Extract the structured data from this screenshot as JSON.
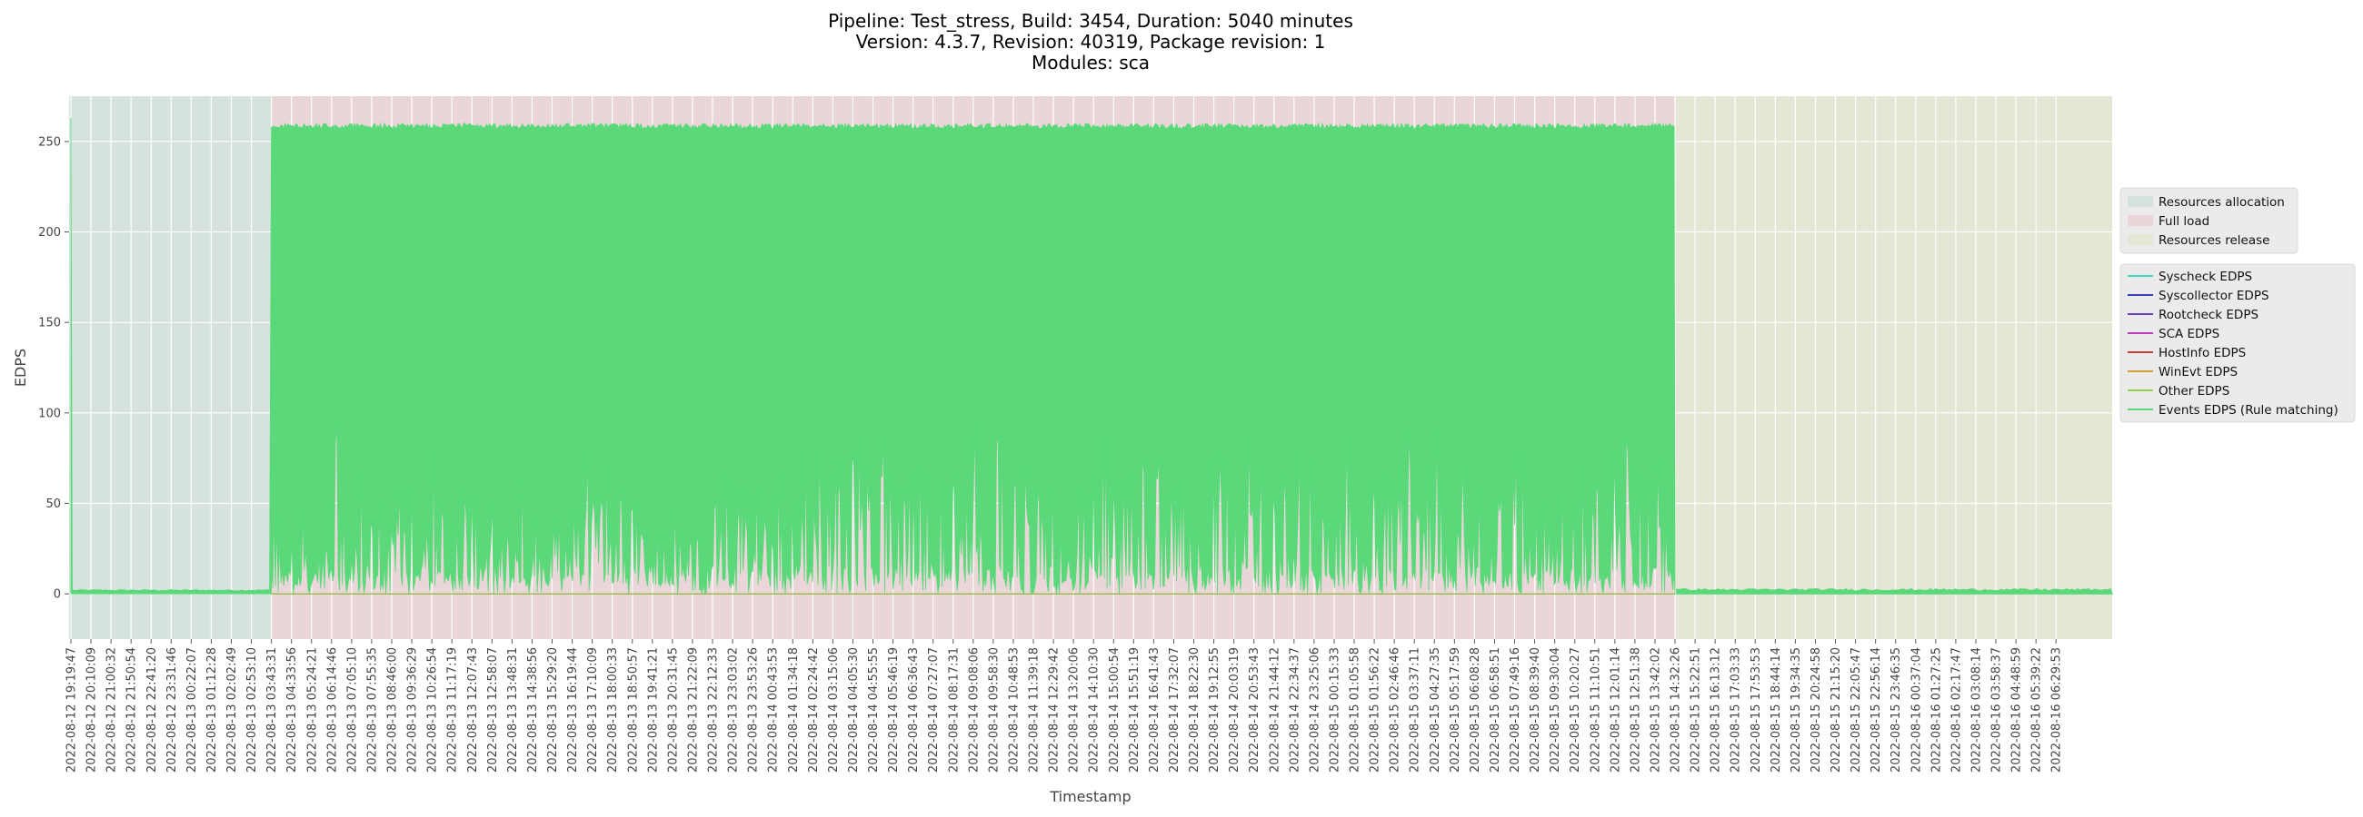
{
  "chart_data": {
    "type": "area",
    "title": [
      "Pipeline: Test_stress, Build: 3454, Duration: 5040 minutes",
      "Version: 4.3.7, Revision: 40319, Package revision: 1",
      "Modules: sca"
    ],
    "xlabel": "Timestamp",
    "ylabel": "EDPS",
    "ylim": [
      -25,
      275
    ],
    "yticks": [
      0,
      50,
      100,
      150,
      200,
      250
    ],
    "grid": true,
    "x_tick_labels": [
      "2022-08-12 19:19:47",
      "2022-08-12 20:10:09",
      "2022-08-12 21:00:32",
      "2022-08-12 21:50:54",
      "2022-08-12 22:41:20",
      "2022-08-12 23:31:46",
      "2022-08-13 00:22:07",
      "2022-08-13 01:12:28",
      "2022-08-13 02:02:49",
      "2022-08-13 02:53:10",
      "2022-08-13 03:43:31",
      "2022-08-13 04:33:56",
      "2022-08-13 05:24:21",
      "2022-08-13 06:14:46",
      "2022-08-13 07:05:10",
      "2022-08-13 07:55:35",
      "2022-08-13 08:46:00",
      "2022-08-13 09:36:29",
      "2022-08-13 10:26:54",
      "2022-08-13 11:17:19",
      "2022-08-13 12:07:43",
      "2022-08-13 12:58:07",
      "2022-08-13 13:48:31",
      "2022-08-13 14:38:56",
      "2022-08-13 15:29:20",
      "2022-08-13 16:19:44",
      "2022-08-13 17:10:09",
      "2022-08-13 18:00:33",
      "2022-08-13 18:50:57",
      "2022-08-13 19:41:21",
      "2022-08-13 20:31:45",
      "2022-08-13 21:22:09",
      "2022-08-13 22:12:33",
      "2022-08-13 23:03:02",
      "2022-08-13 23:53:26",
      "2022-08-14 00:43:53",
      "2022-08-14 01:34:18",
      "2022-08-14 02:24:42",
      "2022-08-14 03:15:06",
      "2022-08-14 04:05:30",
      "2022-08-14 04:55:55",
      "2022-08-14 05:46:19",
      "2022-08-14 06:36:43",
      "2022-08-14 07:27:07",
      "2022-08-14 08:17:31",
      "2022-08-14 09:08:06",
      "2022-08-14 09:58:30",
      "2022-08-14 10:48:53",
      "2022-08-14 11:39:18",
      "2022-08-14 12:29:42",
      "2022-08-14 13:20:06",
      "2022-08-14 14:10:30",
      "2022-08-14 15:00:54",
      "2022-08-14 15:51:19",
      "2022-08-14 16:41:43",
      "2022-08-14 17:32:07",
      "2022-08-14 18:22:30",
      "2022-08-14 19:12:55",
      "2022-08-14 20:03:19",
      "2022-08-14 20:53:43",
      "2022-08-14 21:44:12",
      "2022-08-14 22:34:37",
      "2022-08-14 23:25:06",
      "2022-08-15 00:15:33",
      "2022-08-15 01:05:58",
      "2022-08-15 01:56:22",
      "2022-08-15 02:46:46",
      "2022-08-15 03:37:11",
      "2022-08-15 04:27:35",
      "2022-08-15 05:17:59",
      "2022-08-15 06:08:28",
      "2022-08-15 06:58:51",
      "2022-08-15 07:49:16",
      "2022-08-15 08:39:40",
      "2022-08-15 09:30:04",
      "2022-08-15 10:20:27",
      "2022-08-15 11:10:51",
      "2022-08-15 12:01:14",
      "2022-08-15 12:51:38",
      "2022-08-15 13:42:02",
      "2022-08-15 14:32:26",
      "2022-08-15 15:22:51",
      "2022-08-15 16:13:12",
      "2022-08-15 17:03:33",
      "2022-08-15 17:53:53",
      "2022-08-15 18:44:14",
      "2022-08-15 19:34:35",
      "2022-08-15 20:24:58",
      "2022-08-15 21:15:20",
      "2022-08-15 22:05:47",
      "2022-08-15 22:56:14",
      "2022-08-15 23:46:35",
      "2022-08-16 00:37:04",
      "2022-08-16 01:27:25",
      "2022-08-16 02:17:47",
      "2022-08-16 03:08:14",
      "2022-08-16 03:58:37",
      "2022-08-16 04:48:59",
      "2022-08-16 05:39:22",
      "2022-08-16 06:29:53"
    ],
    "phases": [
      {
        "name": "Resources allocation",
        "start": "2022-08-12 19:19:47",
        "end": "2022-08-13 03:43:31",
        "color": "#d5e3dc"
      },
      {
        "name": "Full load",
        "start": "2022-08-13 03:43:31",
        "end": "2022-08-15 14:32:26",
        "color": "#ead6d8"
      },
      {
        "name": "Resources release",
        "start": "2022-08-15 14:32:26",
        "end": "2022-08-16 06:29:53",
        "color": "#e5e6d5"
      }
    ],
    "legend_placement": "right",
    "series": [
      {
        "name": "Syscheck EDPS",
        "color": "#4fd1c5",
        "baseline": 0
      },
      {
        "name": "Syscollector EDPS",
        "color": "#3b3fb6",
        "baseline": 0
      },
      {
        "name": "Rootcheck EDPS",
        "color": "#6a3fb6",
        "baseline": 0
      },
      {
        "name": "SCA EDPS",
        "color": "#c43ac0",
        "baseline": 0
      },
      {
        "name": "HostInfo EDPS",
        "color": "#c83c3c",
        "baseline": 0
      },
      {
        "name": "WinEvt EDPS",
        "color": "#d1a13a",
        "baseline": 0
      },
      {
        "name": "Other EDPS",
        "color": "#8fd14f",
        "baseline": 0
      },
      {
        "name": "Events EDPS (Rule matching)",
        "color": "#5bd97a",
        "allocation_level": 2,
        "allocation_spike": 263,
        "full_load_peak": 260,
        "full_load_low_range": [
          0,
          97
        ],
        "release_level": 2
      }
    ]
  }
}
